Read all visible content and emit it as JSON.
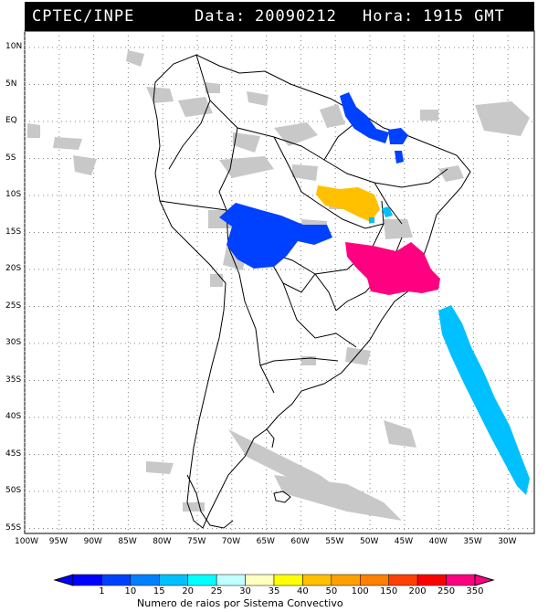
{
  "header": {
    "source": "CPTEC/INPE",
    "date_label": "Data:",
    "date": "20090212",
    "hour_label": "Hora:",
    "hour": "1915 GMT"
  },
  "lat_labels": [
    "10N",
    "5N",
    "EQ",
    "5S",
    "10S",
    "15S",
    "20S",
    "25S",
    "30S",
    "35S",
    "40S",
    "45S",
    "50S",
    "55S"
  ],
  "lon_labels": [
    "100W",
    "95W",
    "90W",
    "85W",
    "80W",
    "75W",
    "70W",
    "65W",
    "60W",
    "55W",
    "50W",
    "45W",
    "40W",
    "35W",
    "30W"
  ],
  "colorbar": {
    "title": "Numero de raios por Sistema Convectivo",
    "labels": [
      "1",
      "10",
      "15",
      "20",
      "25",
      "30",
      "35",
      "40",
      "50",
      "100",
      "150",
      "200",
      "250",
      "350"
    ],
    "colors": [
      "#0000ff",
      "#0040ff",
      "#0080ff",
      "#00c0ff",
      "#00ffff",
      "#c0ffff",
      "#ffffc0",
      "#ffff00",
      "#ffc000",
      "#ffa000",
      "#ff8000",
      "#ff4000",
      "#ff0000",
      "#ff0080"
    ]
  },
  "colors": {
    "cloud_gray": "#c8c8c8",
    "coast": "#000000",
    "grid": "#808080"
  }
}
